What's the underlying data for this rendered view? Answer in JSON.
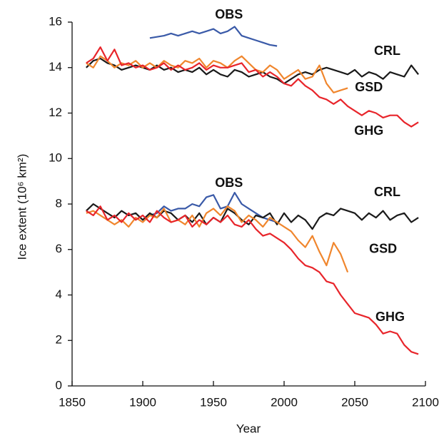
{
  "chart_data": {
    "type": "line",
    "x_label": "Year",
    "y_label": "Ice extent (10⁶ km²)",
    "xlim": [
      1850,
      2100
    ],
    "xticks": [
      1850,
      1900,
      1950,
      2000,
      2050,
      2100
    ],
    "ylim": [
      0,
      16
    ],
    "yticks": [
      0,
      2,
      4,
      6,
      8,
      10,
      12,
      14,
      16
    ],
    "x": [
      1860,
      1865,
      1870,
      1875,
      1880,
      1885,
      1890,
      1895,
      1900,
      1905,
      1910,
      1915,
      1920,
      1925,
      1930,
      1935,
      1940,
      1945,
      1950,
      1955,
      1960,
      1965,
      1970,
      1975,
      1980,
      1985,
      1990,
      1995,
      2000,
      2005,
      2010,
      2015,
      2020,
      2025,
      2030,
      2035,
      2040,
      2045,
      2050,
      2055,
      2060,
      2065,
      2070,
      2075,
      2080,
      2085,
      2090,
      2095
    ],
    "series": [
      {
        "name": "OBS",
        "color": "#3a5aa8",
        "values": [
          null,
          null,
          null,
          null,
          null,
          null,
          null,
          null,
          null,
          15.3,
          15.35,
          15.4,
          15.5,
          15.4,
          15.5,
          15.6,
          15.5,
          15.6,
          15.7,
          15.5,
          15.6,
          15.8,
          15.4,
          15.3,
          15.2,
          15.1,
          15.0,
          14.95,
          null,
          null,
          null,
          null,
          null,
          null,
          null,
          null,
          null,
          null,
          null,
          null,
          null,
          null,
          null,
          null,
          null,
          null,
          null,
          null
        ]
      },
      {
        "name": "CRL",
        "color": "#1a1a1a",
        "values": [
          14.0,
          14.3,
          14.4,
          14.2,
          14.1,
          13.9,
          14.0,
          14.1,
          14.0,
          13.9,
          14.1,
          13.9,
          14.0,
          13.8,
          13.9,
          13.8,
          14.0,
          13.7,
          13.9,
          13.7,
          13.6,
          13.9,
          13.8,
          13.6,
          13.7,
          13.8,
          13.6,
          13.5,
          13.3,
          13.5,
          13.7,
          13.8,
          13.7,
          13.9,
          14.0,
          13.9,
          13.8,
          13.7,
          13.9,
          13.6,
          13.8,
          13.7,
          13.5,
          13.8,
          13.7,
          13.6,
          14.1,
          13.7
        ]
      },
      {
        "name": "GSD",
        "color": "#f0862d",
        "values": [
          14.2,
          14.0,
          14.5,
          14.3,
          14.0,
          14.2,
          14.1,
          14.3,
          14.0,
          14.2,
          14.0,
          14.3,
          14.1,
          14.0,
          14.3,
          14.2,
          14.4,
          14.0,
          14.3,
          14.2,
          14.0,
          14.3,
          14.5,
          14.2,
          13.9,
          13.8,
          14.1,
          13.9,
          13.5,
          13.7,
          13.9,
          13.5,
          13.6,
          14.1,
          13.3,
          12.9,
          13.0,
          13.1,
          null,
          null,
          null,
          null,
          null,
          null,
          null,
          null,
          null,
          null
        ]
      },
      {
        "name": "GHG",
        "color": "#e8252b",
        "values": [
          14.2,
          14.4,
          14.9,
          14.3,
          14.8,
          14.1,
          14.2,
          14.0,
          14.1,
          13.9,
          14.0,
          14.2,
          13.9,
          14.1,
          13.9,
          14.0,
          14.2,
          13.9,
          14.1,
          14.0,
          14.0,
          14.1,
          14.2,
          13.8,
          13.9,
          13.6,
          13.8,
          13.6,
          13.3,
          13.2,
          13.5,
          13.2,
          13.0,
          12.7,
          12.6,
          12.4,
          12.6,
          12.3,
          12.1,
          11.9,
          12.1,
          12.0,
          11.8,
          11.9,
          11.9,
          11.6,
          11.4,
          11.6
        ]
      },
      {
        "name": "OBS",
        "color": "#3a5aa8",
        "values": [
          null,
          null,
          null,
          null,
          null,
          null,
          null,
          null,
          null,
          7.5,
          7.6,
          7.9,
          7.7,
          7.8,
          7.8,
          8.0,
          7.9,
          8.3,
          8.4,
          7.8,
          7.9,
          8.5,
          8.0,
          7.8,
          7.6,
          7.4,
          7.3,
          7.2,
          null,
          null,
          null,
          null,
          null,
          null,
          null,
          null,
          null,
          null,
          null,
          null,
          null,
          null,
          null,
          null,
          null,
          null,
          null,
          null
        ]
      },
      {
        "name": "CRL",
        "color": "#1a1a1a",
        "values": [
          7.7,
          8.0,
          7.8,
          7.6,
          7.4,
          7.7,
          7.5,
          7.6,
          7.3,
          7.6,
          7.4,
          7.7,
          7.6,
          7.3,
          7.5,
          7.2,
          7.6,
          7.1,
          7.4,
          7.2,
          7.8,
          7.6,
          7.3,
          7.1,
          7.5,
          7.4,
          7.6,
          7.1,
          7.6,
          7.2,
          7.5,
          7.3,
          6.9,
          7.4,
          7.6,
          7.5,
          7.8,
          7.7,
          7.6,
          7.3,
          7.6,
          7.4,
          7.7,
          7.3,
          7.5,
          7.6,
          7.2,
          7.4
        ]
      },
      {
        "name": "GSD",
        "color": "#f0862d",
        "values": [
          7.6,
          7.7,
          7.5,
          7.3,
          7.1,
          7.3,
          7.0,
          7.4,
          7.2,
          7.5,
          7.4,
          7.8,
          7.2,
          7.3,
          7.1,
          7.5,
          7.0,
          7.6,
          7.8,
          7.5,
          7.9,
          7.7,
          7.2,
          7.5,
          7.3,
          7.0,
          7.4,
          7.2,
          7.0,
          6.8,
          6.4,
          6.1,
          6.6,
          5.9,
          5.3,
          6.3,
          5.8,
          5.0,
          null,
          null,
          null,
          null,
          null,
          null,
          null,
          null,
          null,
          null
        ]
      },
      {
        "name": "GHG",
        "color": "#e8252b",
        "values": [
          7.7,
          7.5,
          7.9,
          7.3,
          7.5,
          7.2,
          7.6,
          7.3,
          7.5,
          7.2,
          7.7,
          7.4,
          7.2,
          7.3,
          7.5,
          7.0,
          7.3,
          7.1,
          7.4,
          7.2,
          7.5,
          7.1,
          7.0,
          7.3,
          6.9,
          6.6,
          6.7,
          6.5,
          6.3,
          6.0,
          5.6,
          5.3,
          5.2,
          5.0,
          4.6,
          4.5,
          4.0,
          3.6,
          3.2,
          3.1,
          3.0,
          2.7,
          2.3,
          2.4,
          2.3,
          1.8,
          1.5,
          1.4
        ]
      }
    ]
  }
}
